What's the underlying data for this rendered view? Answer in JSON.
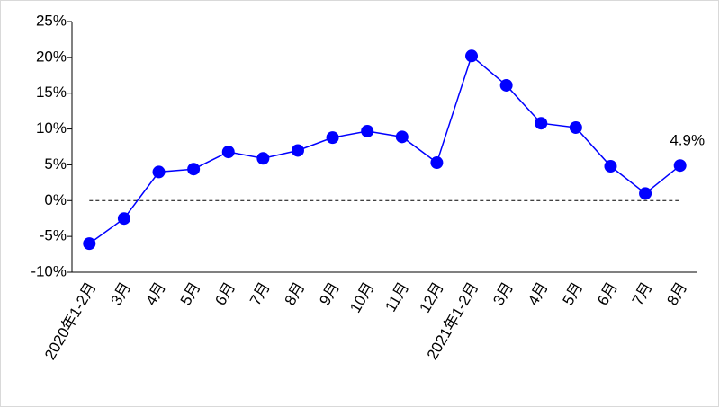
{
  "chart_data": {
    "type": "line",
    "categories": [
      "2020年1-2月",
      "3月",
      "4月",
      "5月",
      "6月",
      "7月",
      "8月",
      "9月",
      "10月",
      "11月",
      "12月",
      "2021年1-2月",
      "3月",
      "4月",
      "5月",
      "6月",
      "7月",
      "8月"
    ],
    "values": [
      -6.0,
      -2.5,
      4.0,
      4.4,
      6.8,
      5.9,
      7.0,
      8.8,
      9.7,
      8.9,
      5.3,
      20.2,
      16.1,
      10.8,
      10.2,
      4.8,
      1.0,
      4.9
    ],
    "value_labels": [
      null,
      null,
      null,
      null,
      null,
      null,
      null,
      null,
      null,
      null,
      null,
      null,
      null,
      null,
      null,
      null,
      null,
      "4.9%"
    ],
    "color": "#0000ff",
    "ylim": [
      -10,
      25
    ],
    "yticks": [
      {
        "value": -10,
        "label": "-10%"
      },
      {
        "value": -5,
        "label": "-5%"
      },
      {
        "value": 0,
        "label": "0%"
      },
      {
        "value": 5,
        "label": "5%"
      },
      {
        "value": 10,
        "label": "10%"
      },
      {
        "value": 15,
        "label": "15%"
      },
      {
        "value": 20,
        "label": "20%"
      },
      {
        "value": 25,
        "label": "25%"
      }
    ],
    "zero_line": true
  }
}
